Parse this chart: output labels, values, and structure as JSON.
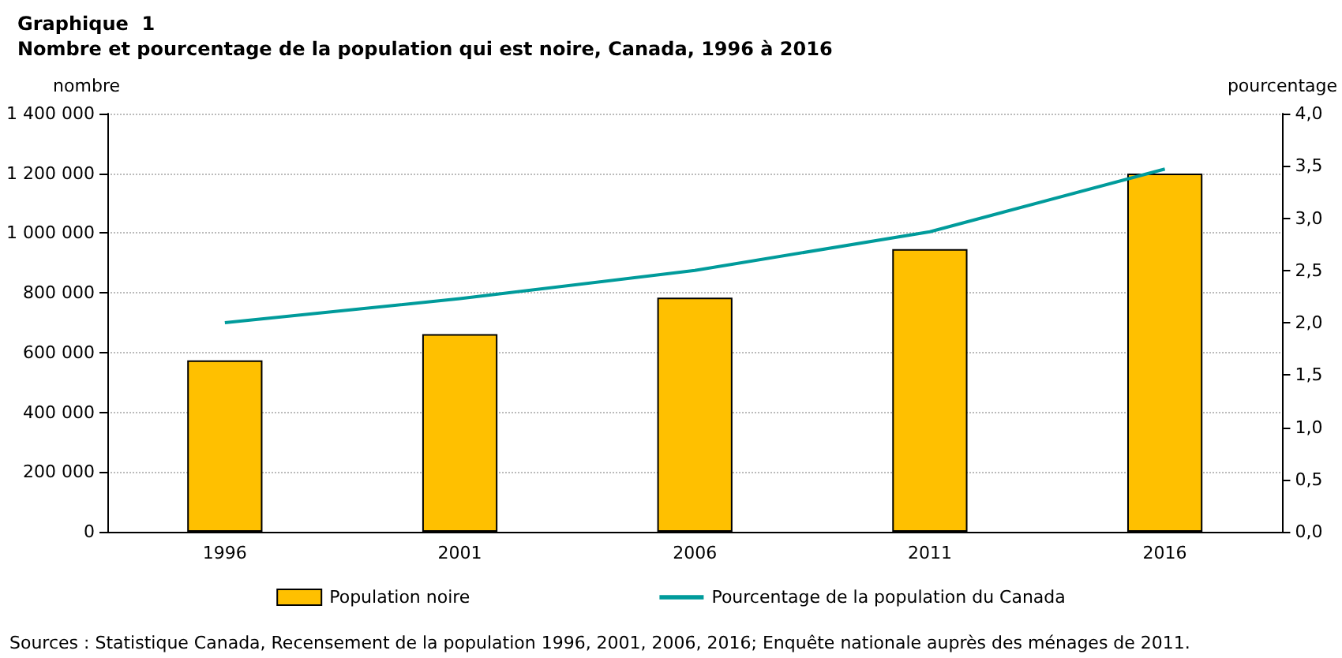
{
  "chart_data": {
    "type": "bar",
    "title": "Graphique  1",
    "subtitle": "Nombre et pourcentage de la population qui est noire, Canada, 1996 à 2016",
    "ylabel": "nombre",
    "y2label": "pourcentage",
    "categories": [
      "1996",
      "2001",
      "2006",
      "2011",
      "2016"
    ],
    "series": [
      {
        "name": "Population noire",
        "color": "#ffc000",
        "values": [
          574000,
          662000,
          784000,
          946000,
          1199000
        ]
      },
      {
        "name": "Pourcentage de la population du Canada",
        "type": "line",
        "axis": "y2",
        "color": "#009b9b",
        "values": [
          2.0,
          2.23,
          2.5,
          2.87,
          3.47
        ]
      }
    ],
    "ylim": [
      0,
      1400000
    ],
    "yticks": [
      0,
      {
        "value": 200000,
        "label": "200 000"
      },
      {
        "value": 400000,
        "label": "400 000"
      },
      {
        "value": 600000,
        "label": "600 000"
      },
      {
        "value": 800000,
        "label": "800 000"
      },
      {
        "value": 1000000,
        "label": "1 000 000"
      },
      {
        "value": 1200000,
        "label": "1 200 000"
      },
      {
        "value": 1400000,
        "label": "1 400 000"
      }
    ],
    "y2lim": [
      0,
      4
    ],
    "y2ticks": [
      {
        "value": 0,
        "label": "0,0"
      },
      {
        "value": 0.5,
        "label": "0,5"
      },
      {
        "value": 1,
        "label": "1,0"
      },
      {
        "value": 1.5,
        "label": "1,5"
      },
      {
        "value": 2,
        "label": "2,0"
      },
      {
        "value": 2.5,
        "label": "2,5"
      },
      {
        "value": 3,
        "label": "3,0"
      },
      {
        "value": 3.5,
        "label": "3,5"
      },
      {
        "value": 4,
        "label": "4,0"
      }
    ],
    "grid": "y",
    "legend": "bottom",
    "marker": "none",
    "line_style": "solid",
    "annotations": [
      "Sources : Statistique Canada, Recensement de la population 1996, 2001, 2006, 2016; Enquête nationale auprès des ménages de 2011."
    ]
  }
}
